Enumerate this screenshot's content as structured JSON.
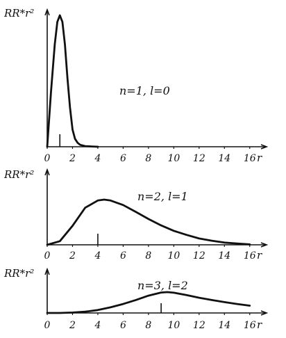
{
  "chart_data": [
    {
      "type": "line",
      "ylabel": "RR*r²",
      "xlabel": "r",
      "annotation": "n=1, l=0",
      "x_ticks": [
        0,
        2,
        4,
        6,
        8,
        10,
        12,
        14,
        16
      ],
      "xlim": [
        0,
        17
      ],
      "ylim": [
        0,
        1
      ],
      "marker_x": 1,
      "x": [
        0,
        0.3,
        0.6,
        0.8,
        1.0,
        1.2,
        1.4,
        1.6,
        1.8,
        2.0,
        2.2,
        2.4,
        2.6,
        3.0,
        3.5,
        4.0
      ],
      "y": [
        0,
        0.42,
        0.78,
        0.95,
        1.0,
        0.95,
        0.78,
        0.52,
        0.3,
        0.13,
        0.06,
        0.03,
        0.015,
        0.005,
        0.002,
        0
      ]
    },
    {
      "type": "line",
      "ylabel": "RR*r²",
      "xlabel": "r",
      "annotation": "n=2, l=1",
      "x_ticks": [
        0,
        2,
        4,
        6,
        8,
        10,
        12,
        14,
        16
      ],
      "xlim": [
        0,
        17
      ],
      "ylim": [
        0,
        1
      ],
      "marker_x": 4,
      "x": [
        0,
        1,
        2,
        3,
        4,
        4.5,
        5,
        6,
        7,
        8,
        9,
        10,
        11,
        12,
        13,
        14,
        15,
        16
      ],
      "y": [
        0,
        0.08,
        0.42,
        0.82,
        0.98,
        1.0,
        0.98,
        0.88,
        0.73,
        0.57,
        0.43,
        0.31,
        0.22,
        0.14,
        0.09,
        0.05,
        0.03,
        0.01
      ]
    },
    {
      "type": "line",
      "ylabel": "RR*r²",
      "xlabel": "r",
      "annotation": "n=3, l=2",
      "x_ticks": [
        0,
        2,
        4,
        6,
        8,
        10,
        12,
        14,
        16
      ],
      "xlim": [
        0,
        17
      ],
      "ylim": [
        0,
        1
      ],
      "marker_x": 9,
      "x": [
        0,
        1,
        2,
        3,
        4,
        5,
        6,
        7,
        8,
        9,
        9.5,
        10,
        11,
        12,
        13,
        14,
        15,
        16
      ],
      "y": [
        0,
        0.0,
        0.02,
        0.06,
        0.14,
        0.27,
        0.43,
        0.62,
        0.83,
        0.98,
        1.0,
        0.97,
        0.86,
        0.73,
        0.62,
        0.52,
        0.43,
        0.35
      ]
    }
  ]
}
